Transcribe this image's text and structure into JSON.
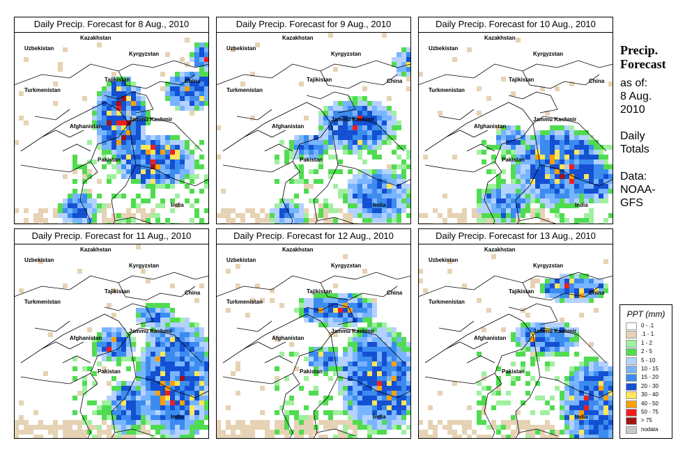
{
  "panels": [
    {
      "title": "Daily Precip. Forecast for  8 Aug., 2010"
    },
    {
      "title": "Daily Precip. Forecast for  9 Aug., 2010"
    },
    {
      "title": "Daily Precip. Forecast for  10 Aug., 2010"
    },
    {
      "title": "Daily Precip. Forecast for  11 Aug., 2010"
    },
    {
      "title": "Daily Precip. Forecast for  12 Aug., 2010"
    },
    {
      "title": "Daily Precip. Forecast for  13 Aug., 2010"
    }
  ],
  "map_labels": {
    "kazakhstan": "Kazakhstan",
    "uzbekistan": "Uzbekistan",
    "kyrgyzstan": "Kyrgyzstan",
    "tajikistan": "Tajikistan",
    "china": "China",
    "turkmenistan": "Turkmenistan",
    "afghanistan": "Afghanistan",
    "jammu_kashmir": "Jammu Kashmir",
    "pakistan": "Pakistan",
    "india": "India"
  },
  "side": {
    "title_line1": "Precip.",
    "title_line2": "Forecast",
    "asof_line1": "as of:",
    "asof_line2": "8 Aug.",
    "asof_line3": "2010",
    "daily_line1": "Daily",
    "daily_line2": "Totals",
    "data_line1": "Data:",
    "data_line2": "NOAA-",
    "data_line3": "GFS"
  },
  "legend": {
    "title": "PPT (mm)",
    "items": [
      {
        "label": "0 - .1",
        "color": "#ffffff"
      },
      {
        "label": ".1 - 1",
        "color": "#e6d2b4"
      },
      {
        "label": "1 - 2",
        "color": "#a0f0a0"
      },
      {
        "label": "2 - 5",
        "color": "#50dc50"
      },
      {
        "label": "5 - 10",
        "color": "#b4d2ff"
      },
      {
        "label": "10 - 15",
        "color": "#78b4ff"
      },
      {
        "label": "15 - 20",
        "color": "#3c8cf0"
      },
      {
        "label": "20 - 30",
        "color": "#1450d2"
      },
      {
        "label": "30 - 40",
        "color": "#ffe65a"
      },
      {
        "label": "40 - 50",
        "color": "#ffa000"
      },
      {
        "label": "50 - 75",
        "color": "#f01e1e"
      },
      {
        "label": "> 75",
        "color": "#a01414"
      },
      {
        "label": "nodata",
        "color": "#c8c8c8"
      }
    ]
  }
}
